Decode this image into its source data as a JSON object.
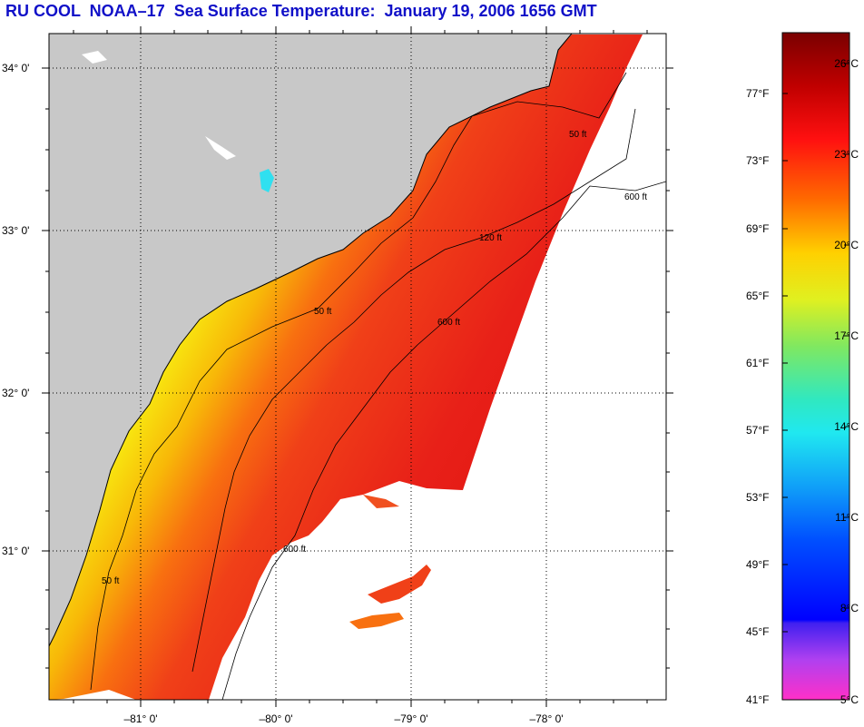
{
  "title": "RU COOL  NOAA–17  Sea Surface Temperature:  January 19, 2006 1656 GMT",
  "latitude_labels": [
    "34° 0'",
    "33° 0'",
    "32° 0'",
    "31° 0'"
  ],
  "longitude_labels": [
    "–81° 0'",
    "–80° 0'",
    "–79° 0'",
    "–78° 0'"
  ],
  "contour_labels": {
    "c50": "50 ft",
    "c120": "120 ft",
    "c600": "600 ft"
  },
  "colorbar": {
    "fahrenheit": [
      "77°F",
      "73°F",
      "69°F",
      "65°F",
      "61°F",
      "57°F",
      "53°F",
      "49°F",
      "45°F",
      "41°F"
    ],
    "celsius": [
      "26°C",
      "23°C",
      "20°C",
      "17°C",
      "14°C",
      "11°C",
      "8°C",
      "5°C"
    ]
  },
  "colors": {
    "title": "#1010c8",
    "land": "#c8c8c8",
    "no_data": "#ffffff"
  }
}
